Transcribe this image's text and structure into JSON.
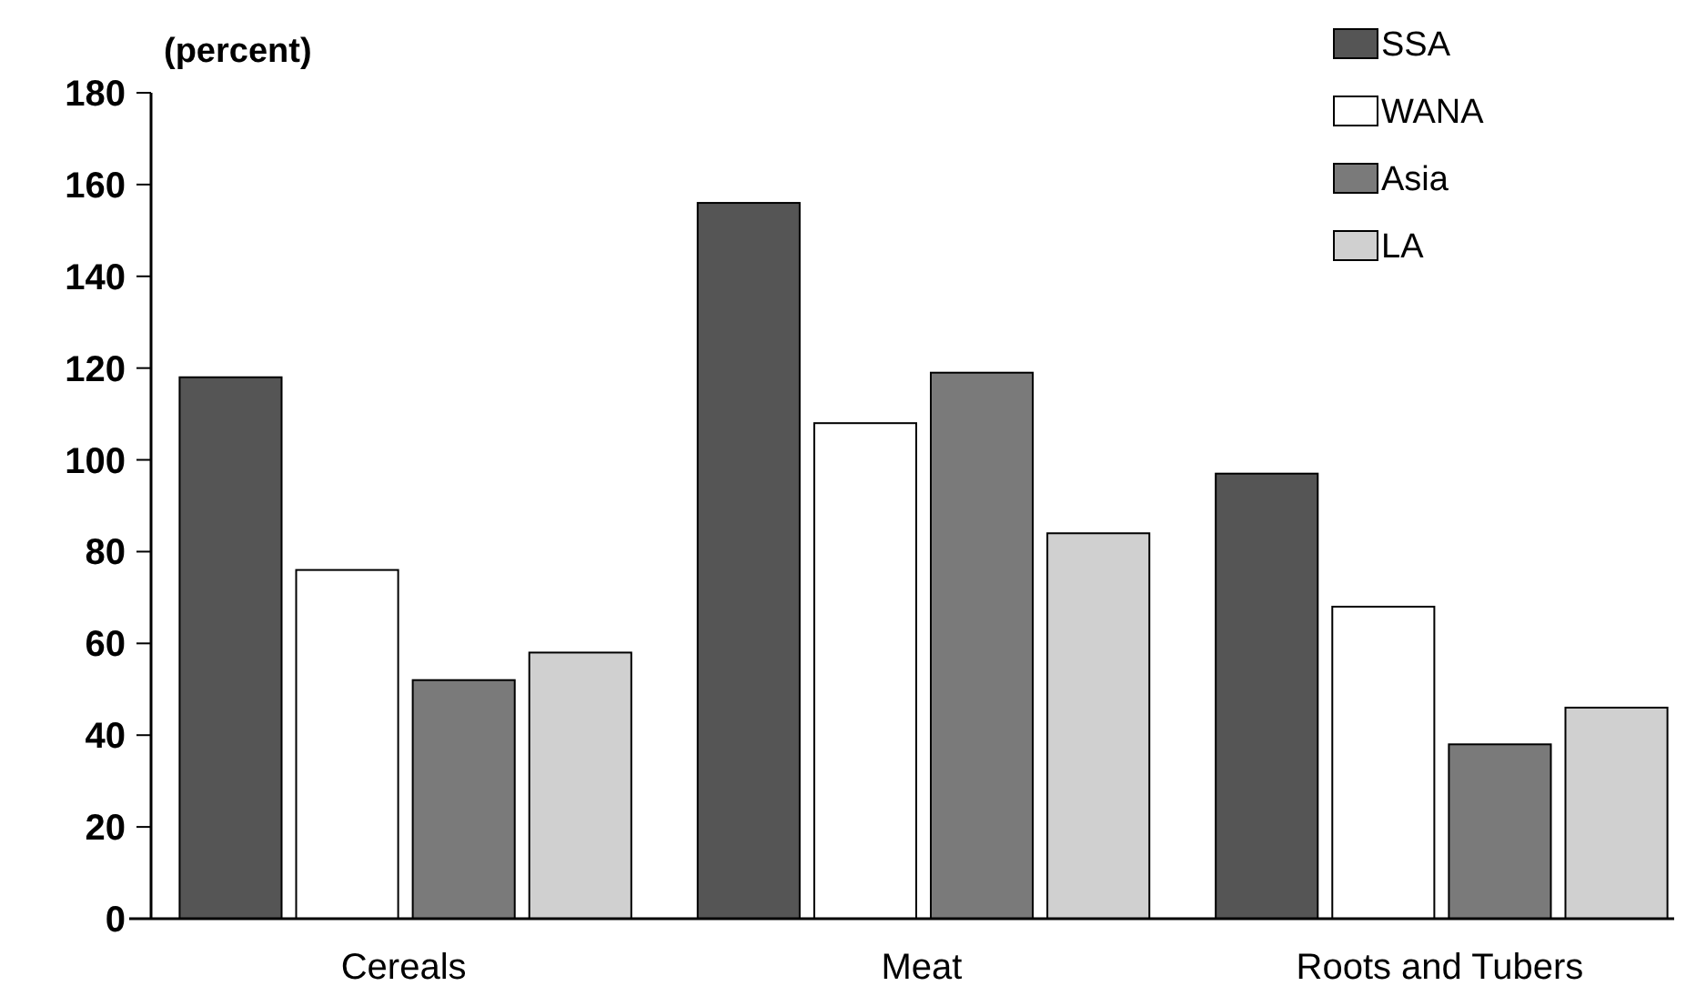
{
  "chart_data": {
    "type": "bar",
    "ylabel": "(percent)",
    "categories": [
      "Cereals",
      "Meat",
      "Roots and Tubers"
    ],
    "series": [
      {
        "name": "SSA",
        "color": "#555555",
        "values": [
          118,
          156,
          97
        ]
      },
      {
        "name": "WANA",
        "color": "#ffffff",
        "values": [
          76,
          108,
          68
        ]
      },
      {
        "name": "Asia",
        "color": "#7a7a7a",
        "values": [
          52,
          119,
          38
        ]
      },
      {
        "name": "LA",
        "color": "#d0d0d0",
        "values": [
          58,
          84,
          46
        ]
      }
    ],
    "ylim": [
      0,
      180
    ],
    "yticks": [
      0,
      20,
      40,
      60,
      80,
      100,
      120,
      140,
      160,
      180
    ],
    "legend": "top right"
  }
}
